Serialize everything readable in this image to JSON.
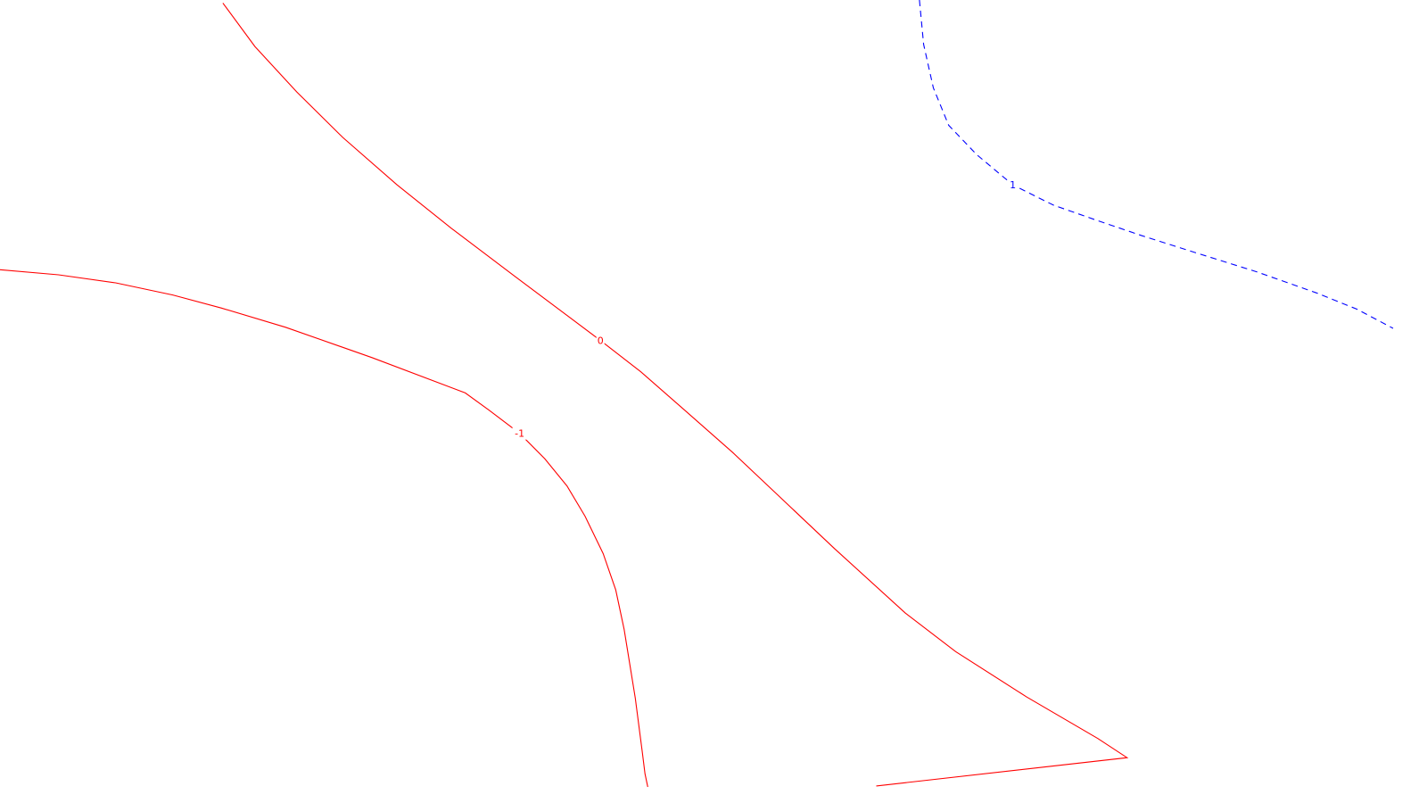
{
  "chart_data": {
    "type": "contour",
    "title": "",
    "xlabel": "",
    "ylabel": "",
    "grid": false,
    "legend": "none",
    "axes_visible": false,
    "series": [
      {
        "name": "-1",
        "level": -1,
        "label_text": "-1",
        "color": "#ff0000",
        "line_style": "solid",
        "label_at": 9,
        "points": [
          [
            0.0,
            0.0
          ],
          [
            4.2,
            -0.5
          ],
          [
            8.3,
            -1.3
          ],
          [
            12.4,
            -2.5
          ],
          [
            15.9,
            -3.8
          ],
          [
            20.5,
            -5.7
          ],
          [
            26.7,
            -8.7
          ],
          [
            33.4,
            -12.2
          ],
          [
            35.1,
            -13.9
          ],
          [
            37.3,
            -16.2
          ],
          [
            39.1,
            -18.7
          ],
          [
            40.7,
            -21.4
          ],
          [
            42.0,
            -24.4
          ],
          [
            43.3,
            -28.1
          ],
          [
            44.2,
            -31.7
          ],
          [
            44.8,
            -35.6
          ],
          [
            45.6,
            -42.4
          ],
          [
            46.1,
            -47.7
          ],
          [
            46.3,
            -49.9
          ],
          [
            46.5,
            -51.2
          ]
        ]
      },
      {
        "name": "0",
        "level": 0,
        "label_text": "0",
        "color": "#ff0000",
        "line_style": "solid",
        "label_at": 7,
        "points": [
          [
            16.0,
            26.4
          ],
          [
            18.3,
            22.1
          ],
          [
            21.3,
            17.6
          ],
          [
            24.6,
            13.1
          ],
          [
            28.5,
            8.4
          ],
          [
            32.4,
            4.1
          ],
          [
            37.0,
            -0.7
          ],
          [
            43.1,
            -7.0
          ],
          [
            46.0,
            -10.1
          ],
          [
            48.9,
            -13.6
          ],
          [
            52.6,
            -18.1
          ],
          [
            55.9,
            -22.4
          ],
          [
            59.9,
            -27.6
          ],
          [
            65.0,
            -34.0
          ],
          [
            68.6,
            -37.8
          ],
          [
            73.7,
            -42.3
          ],
          [
            78.8,
            -46.4
          ],
          [
            80.9,
            -48.3
          ],
          [
            62.9,
            -51.1
          ]
        ]
      },
      {
        "name": "1",
        "level": 1,
        "label_text": "1",
        "color": "#0000ff",
        "line_style": "dashed",
        "label_at": 5,
        "points": [
          [
            66.0,
            26.7
          ],
          [
            66.3,
            22.3
          ],
          [
            67.0,
            18.0
          ],
          [
            68.1,
            14.3
          ],
          [
            70.1,
            11.4
          ],
          [
            72.7,
            8.4
          ],
          [
            75.6,
            6.4
          ],
          [
            78.5,
            5.0
          ],
          [
            81.9,
            3.4
          ],
          [
            85.8,
            1.7
          ],
          [
            90.2,
            -0.2
          ],
          [
            94.5,
            -2.3
          ],
          [
            97.4,
            -3.9
          ],
          [
            100.0,
            -5.8
          ]
        ]
      }
    ]
  }
}
